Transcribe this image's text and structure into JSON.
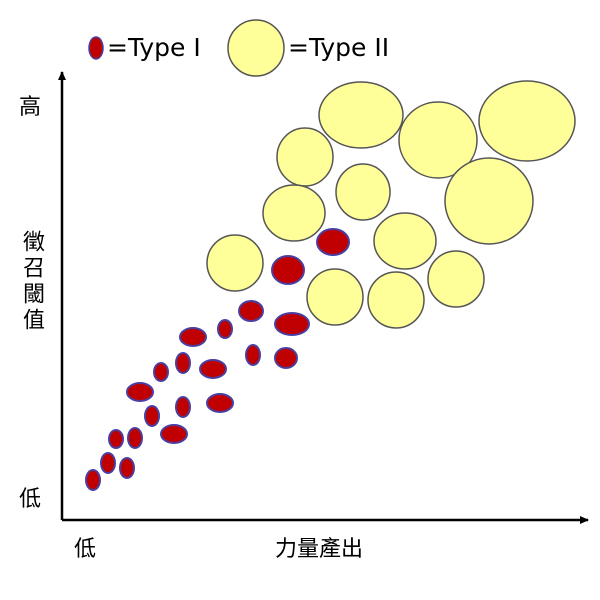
{
  "legend": {
    "type1": {
      "label": "=Type I",
      "color": "#c00000",
      "stroke": "#4a3fa0"
    },
    "type2": {
      "label": "=Type II",
      "color": "#ffff99",
      "stroke": "#555555"
    }
  },
  "axes": {
    "y_high": "高",
    "y_title": "徵召閾值",
    "y_low": "低",
    "x_low": "低",
    "x_title": "力量產出"
  }
}
